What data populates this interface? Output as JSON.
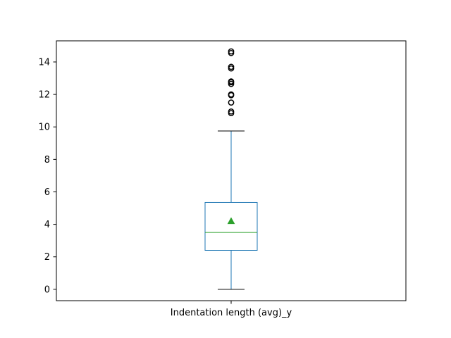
{
  "chart_data": {
    "type": "box",
    "categories": [
      "Indentation length (avg)_y"
    ],
    "xlabel": "Indentation length (avg)_y",
    "ylim": [
      -0.7,
      15.3
    ],
    "yticks": [
      0,
      2,
      4,
      6,
      8,
      10,
      12,
      14
    ],
    "ytick_labels": [
      "0",
      "2",
      "4",
      "6",
      "8",
      "10",
      "12",
      "14"
    ],
    "grid": false,
    "box": {
      "whisker_low": 0.0,
      "q1": 2.4,
      "median": 3.5,
      "q3": 5.35,
      "whisker_high": 9.75,
      "mean": 4.2,
      "outliers": [
        10.85,
        10.95,
        11.5,
        11.95,
        12.0,
        12.65,
        12.75,
        12.8,
        13.6,
        13.7,
        14.55,
        14.65
      ]
    },
    "colors": {
      "box": "#1f77b4",
      "median": "#2ca02c",
      "mean_marker": "#2ca02c",
      "whisker": "#1f77b4",
      "cap": "#000000",
      "outlier": "#000000",
      "axes": "#000000"
    }
  }
}
